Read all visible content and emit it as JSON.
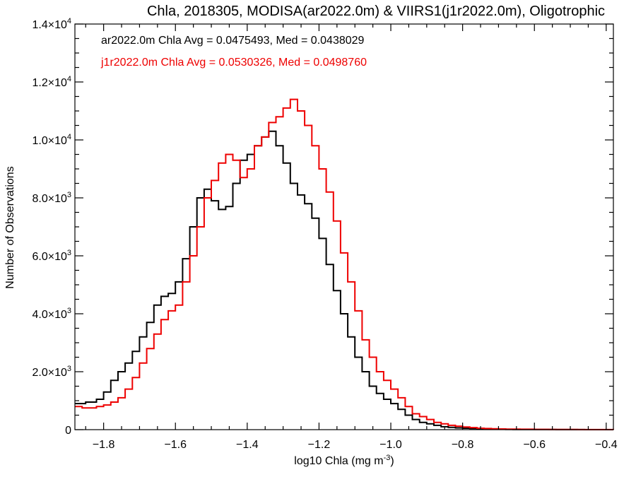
{
  "chart_data": {
    "type": "line",
    "step": true,
    "title": "Chla, 2018305, MODISA(ar2022.0m) & VIIRS1(j1r2022.0m), Oligotrophic",
    "xlabel": "log10 Chla (mg m",
    "xlabel_sup": "-3",
    "xlabel_end": ")",
    "ylabel": "Number of Observations",
    "xlim": [
      -1.88,
      -0.38
    ],
    "ylim": [
      0,
      14000
    ],
    "grid": false,
    "legend": "top-left",
    "x_ticks": [
      {
        "value": -1.8,
        "label": "−1.8"
      },
      {
        "value": -1.6,
        "label": "−1.6"
      },
      {
        "value": -1.4,
        "label": "−1.4"
      },
      {
        "value": -1.2,
        "label": "−1.2"
      },
      {
        "value": -1.0,
        "label": "−1.0"
      },
      {
        "value": -0.8,
        "label": "−0.8"
      },
      {
        "value": -0.6,
        "label": "−0.6"
      },
      {
        "value": -0.4,
        "label": "−0.4"
      }
    ],
    "y_ticks": [
      {
        "value": 0,
        "mant": "0",
        "exp": ""
      },
      {
        "value": 2000,
        "mant": "2.0×10",
        "exp": "3"
      },
      {
        "value": 4000,
        "mant": "4.0×10",
        "exp": "3"
      },
      {
        "value": 6000,
        "mant": "6.0×10",
        "exp": "3"
      },
      {
        "value": 8000,
        "mant": "8.0×10",
        "exp": "3"
      },
      {
        "value": 10000,
        "mant": "1.0×10",
        "exp": "4"
      },
      {
        "value": 12000,
        "mant": "1.2×10",
        "exp": "4"
      },
      {
        "value": 14000,
        "mant": "1.4×10",
        "exp": "4"
      }
    ],
    "annotations": [
      {
        "text": "ar2022.0m Chla Avg = 0.0475493, Med = 0.0438029",
        "color": "#000000"
      },
      {
        "text": "j1r2022.0m Chla Avg = 0.0530326, Med = 0.0498760",
        "color": "#ee0000"
      }
    ],
    "series": [
      {
        "color": "#000000",
        "x": [
          -1.88,
          -1.85,
          -1.82,
          -1.8,
          -1.78,
          -1.76,
          -1.74,
          -1.72,
          -1.7,
          -1.68,
          -1.66,
          -1.64,
          -1.62,
          -1.6,
          -1.58,
          -1.56,
          -1.54,
          -1.52,
          -1.5,
          -1.48,
          -1.46,
          -1.44,
          -1.42,
          -1.4,
          -1.38,
          -1.36,
          -1.34,
          -1.32,
          -1.3,
          -1.28,
          -1.26,
          -1.24,
          -1.22,
          -1.2,
          -1.18,
          -1.16,
          -1.14,
          -1.12,
          -1.1,
          -1.08,
          -1.06,
          -1.04,
          -1.02,
          -1.0,
          -0.98,
          -0.96,
          -0.94,
          -0.92,
          -0.9,
          -0.88,
          -0.86,
          -0.84,
          -0.82,
          -0.8,
          -0.78,
          -0.76,
          -0.74,
          -0.72,
          -0.7,
          -0.68,
          -0.66,
          -0.62,
          -0.58,
          -0.54,
          -0.5,
          -0.46,
          -0.42,
          -0.38
        ],
        "y": [
          900,
          950,
          1050,
          1300,
          1700,
          2000,
          2300,
          2700,
          3200,
          3700,
          4300,
          4600,
          4700,
          5100,
          5900,
          7000,
          8000,
          8300,
          7900,
          7600,
          7700,
          8500,
          9300,
          9500,
          9800,
          10100,
          10300,
          9800,
          9200,
          8500,
          8100,
          7800,
          7300,
          6600,
          5700,
          4800,
          4000,
          3200,
          2500,
          2000,
          1500,
          1250,
          1050,
          900,
          700,
          500,
          350,
          250,
          200,
          150,
          100,
          80,
          60,
          50,
          40,
          30,
          25,
          20,
          15,
          10,
          8,
          6,
          4,
          3,
          2,
          1,
          1,
          0
        ]
      },
      {
        "color": "#ee0000",
        "x": [
          -1.88,
          -1.86,
          -1.84,
          -1.82,
          -1.8,
          -1.78,
          -1.76,
          -1.74,
          -1.72,
          -1.7,
          -1.68,
          -1.66,
          -1.64,
          -1.62,
          -1.6,
          -1.58,
          -1.56,
          -1.54,
          -1.52,
          -1.5,
          -1.48,
          -1.46,
          -1.44,
          -1.42,
          -1.4,
          -1.38,
          -1.36,
          -1.34,
          -1.32,
          -1.3,
          -1.28,
          -1.26,
          -1.24,
          -1.22,
          -1.2,
          -1.18,
          -1.16,
          -1.14,
          -1.12,
          -1.1,
          -1.08,
          -1.06,
          -1.04,
          -1.02,
          -1.0,
          -0.98,
          -0.96,
          -0.94,
          -0.92,
          -0.9,
          -0.88,
          -0.86,
          -0.84,
          -0.82,
          -0.8,
          -0.78,
          -0.76,
          -0.74,
          -0.72,
          -0.7,
          -0.68,
          -0.64,
          -0.6,
          -0.56,
          -0.52,
          -0.48,
          -0.44,
          -0.38
        ],
        "y": [
          800,
          750,
          750,
          800,
          850,
          950,
          1100,
          1400,
          1800,
          2300,
          2800,
          3300,
          3800,
          4100,
          4300,
          5100,
          6000,
          7000,
          8000,
          8600,
          9200,
          9500,
          9300,
          8700,
          9000,
          9800,
          10100,
          10600,
          10800,
          11100,
          11400,
          11000,
          10500,
          9800,
          9000,
          8200,
          7200,
          6100,
          5100,
          4100,
          3100,
          2500,
          2000,
          1700,
          1400,
          1100,
          800,
          550,
          450,
          350,
          250,
          200,
          150,
          120,
          90,
          70,
          50,
          40,
          30,
          25,
          20,
          15,
          10,
          6,
          4,
          3,
          2,
          1
        ]
      }
    ]
  }
}
